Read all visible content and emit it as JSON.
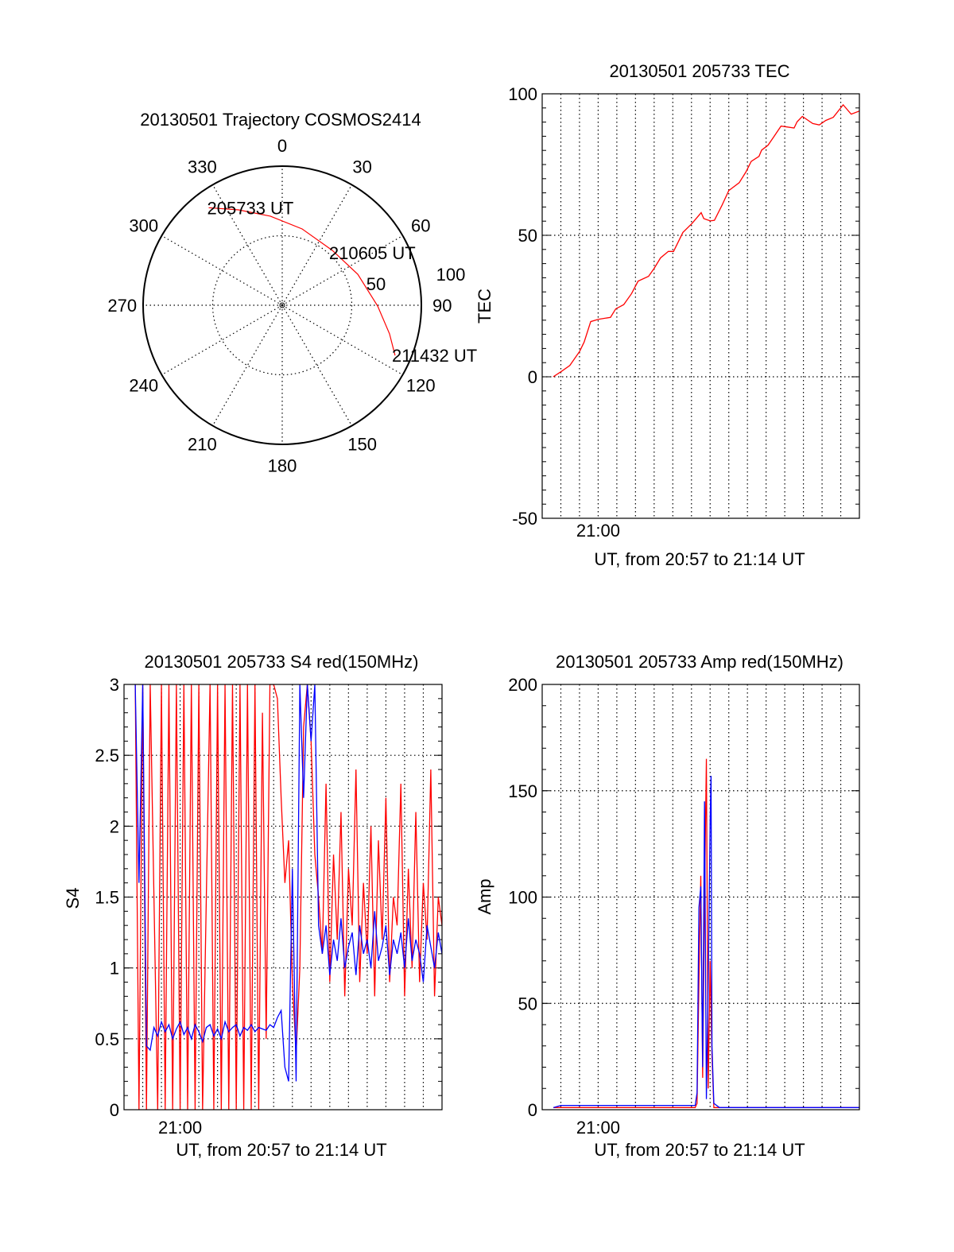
{
  "colors": {
    "red": "#ff0000",
    "blue": "#0000ff",
    "axis": "#000000"
  },
  "chart_data": [
    {
      "id": "trajectory",
      "type": "polar",
      "title": "20130501 Trajectory COSMOS2414",
      "angle_ticks": [
        0,
        30,
        60,
        90,
        120,
        150,
        180,
        210,
        240,
        270,
        300,
        330
      ],
      "radius_ticks": [
        50,
        100
      ],
      "rlim": [
        0,
        100
      ],
      "series": [
        {
          "name": "trajectory",
          "color": "red",
          "points": [
            [
              323,
              87.8
            ],
            [
              335.4,
              75.4
            ],
            [
              352.4,
              64.6
            ],
            [
              14.6,
              56.7
            ],
            [
              42.4,
              53.4
            ],
            [
              67.7,
              58.7
            ],
            [
              90.5,
              68.6
            ],
            [
              104.9,
              79.8
            ],
            [
              114,
              88.8
            ]
          ]
        }
      ],
      "annotations": [
        {
          "text": "205733 UT",
          "az": 323,
          "r": 87.8
        },
        {
          "text": "210605 UT",
          "az": 43.7,
          "r": 52
        },
        {
          "text": "211432 UT",
          "az": 114,
          "r": 88.8
        }
      ]
    },
    {
      "id": "tec",
      "type": "line",
      "title": "20130501 205733 TEC",
      "xlabel": "UT, from 20:57 to 21:14 UT",
      "ylabel": "TEC",
      "x_units": "minutes after 20:57",
      "xlim": [
        0,
        17
      ],
      "ylim": [
        -50,
        100
      ],
      "yticks": [
        -50,
        0,
        50,
        100
      ],
      "yminor": 5,
      "xticks": [
        {
          "value": 3,
          "label": "21:00"
        }
      ],
      "xgrid_step": 1,
      "grid": true,
      "series": [
        {
          "name": "TEC",
          "color": "red",
          "points": [
            [
              0.59,
              0
            ],
            [
              1.01,
              1.8
            ],
            [
              1.48,
              4
            ],
            [
              2.01,
              9
            ],
            [
              2.25,
              12.3
            ],
            [
              2.6,
              19.5
            ],
            [
              3.0,
              20.3
            ],
            [
              3.66,
              21
            ],
            [
              3.94,
              24
            ],
            [
              4.37,
              25.5
            ],
            [
              4.79,
              29.4
            ],
            [
              5.14,
              33.8
            ],
            [
              5.7,
              35.5
            ],
            [
              5.99,
              38.2
            ],
            [
              6.34,
              42
            ],
            [
              6.76,
              44.3
            ],
            [
              7.04,
              44.3
            ],
            [
              7.54,
              51
            ],
            [
              8.03,
              54.2
            ],
            [
              8.52,
              58
            ],
            [
              8.66,
              55.9
            ],
            [
              9.01,
              55.1
            ],
            [
              9.23,
              55.3
            ],
            [
              9.65,
              60.8
            ],
            [
              10.0,
              65.8
            ],
            [
              10.56,
              68.6
            ],
            [
              10.92,
              72.4
            ],
            [
              11.2,
              76.1
            ],
            [
              11.62,
              77.9
            ],
            [
              11.76,
              80.1
            ],
            [
              12.1,
              81.8
            ],
            [
              12.39,
              84.6
            ],
            [
              12.8,
              88.6
            ],
            [
              13.5,
              87.9
            ],
            [
              13.66,
              90.1
            ],
            [
              13.94,
              92
            ],
            [
              14.5,
              89.5
            ],
            [
              14.85,
              89
            ],
            [
              15.2,
              90.6
            ],
            [
              15.6,
              91.7
            ],
            [
              16.13,
              96.1
            ],
            [
              16.56,
              92.8
            ],
            [
              17.0,
              93.9
            ]
          ]
        }
      ]
    },
    {
      "id": "s4",
      "type": "line",
      "title": "20130501 205733 S4 red(150MHz)",
      "xlabel": "UT, from 20:57 to 21:14 UT",
      "ylabel": "S4",
      "x_units": "minutes after 20:57",
      "xlim": [
        0,
        17
      ],
      "ylim": [
        0,
        3
      ],
      "yticks": [
        0,
        0.5,
        1,
        1.5,
        2,
        2.5,
        3
      ],
      "yminor": 0.1,
      "xticks": [
        {
          "value": 3,
          "label": "21:00"
        }
      ],
      "xgrid_step": 1,
      "grid": true,
      "x_start": 0.6,
      "x_step": 0.2,
      "series": [
        {
          "name": "red",
          "color": "red",
          "values": [
            3,
            0,
            3,
            0,
            3,
            1.5,
            0,
            3,
            0,
            3,
            0,
            3,
            0,
            3,
            0,
            3,
            0,
            3,
            0,
            1.5,
            3,
            0,
            3,
            0,
            3,
            0,
            3,
            0,
            3,
            0,
            3,
            0,
            3,
            0,
            2.8,
            0.5,
            3,
            3,
            2.9,
            2.2,
            1.6,
            1.9,
            0.9,
            0.4,
            1.0,
            2.7,
            3,
            2.6,
            1.8,
            1.5,
            1.1,
            2.3,
            0.9,
            1.8,
            1.2,
            2.1,
            0.8,
            1.7,
            1.3,
            2.4,
            0.9,
            1.6,
            1.1,
            2.0,
            0.8,
            1.9,
            1.2,
            2.2,
            0.9,
            1.5,
            1.3,
            2.3,
            0.8,
            1.7,
            1.0,
            2.1,
            0.9,
            1.6,
            1.2,
            2.4,
            0.8,
            1.5,
            1.3
          ]
        },
        {
          "name": "blue",
          "color": "blue",
          "values": [
            3,
            1.6,
            3,
            0.45,
            0.42,
            0.58,
            0.52,
            0.62,
            0.55,
            0.6,
            0.5,
            0.57,
            0.62,
            0.53,
            0.58,
            0.5,
            0.6,
            0.55,
            0.48,
            0.58,
            0.6,
            0.52,
            0.57,
            0.5,
            0.62,
            0.55,
            0.58,
            0.6,
            0.52,
            0.58,
            0.56,
            0.6,
            0.55,
            0.58,
            0.57,
            0.56,
            0.6,
            0.58,
            0.65,
            0.7,
            0.3,
            0.2,
            1.7,
            0.2,
            3,
            2.2,
            3,
            2.6,
            3,
            1.3,
            1.1,
            1.3,
            0.95,
            1.2,
            1.05,
            1.35,
            1.0,
            1.15,
            1.25,
            0.95,
            1.3,
            1.1,
            1.2,
            1.0,
            1.4,
            1.05,
            1.15,
            1.3,
            0.95,
            1.2,
            1.1,
            1.25,
            1.0,
            1.35,
            1.05,
            1.2,
            1.1,
            0.9,
            1.3,
            1.15,
            1.0,
            1.25,
            1.1
          ]
        }
      ]
    },
    {
      "id": "amp",
      "type": "line",
      "title": "20130501 205733 Amp red(150MHz)",
      "xlabel": "UT, from 20:57 to 21:14 UT",
      "ylabel": "Amp",
      "x_units": "minutes after 20:57",
      "xlim": [
        0,
        17
      ],
      "ylim": [
        0,
        200
      ],
      "yticks": [
        0,
        50,
        100,
        150,
        200
      ],
      "yminor": 10,
      "xticks": [
        {
          "value": 3,
          "label": "21:00"
        }
      ],
      "xgrid_step": 1,
      "grid": true,
      "series": [
        {
          "name": "red",
          "color": "red",
          "points": [
            [
              0.6,
              1
            ],
            [
              8.2,
              1
            ],
            [
              8.3,
              3
            ],
            [
              8.4,
              60
            ],
            [
              8.5,
              110
            ],
            [
              8.6,
              15
            ],
            [
              8.7,
              100
            ],
            [
              8.8,
              165
            ],
            [
              8.9,
              10
            ],
            [
              9.0,
              70
            ],
            [
              9.1,
              25
            ],
            [
              9.2,
              1
            ],
            [
              12,
              1
            ],
            [
              17,
              1
            ]
          ]
        },
        {
          "name": "blue",
          "color": "blue",
          "points": [
            [
              0.6,
              1
            ],
            [
              1.0,
              2
            ],
            [
              8.2,
              2
            ],
            [
              8.3,
              8
            ],
            [
              8.4,
              95
            ],
            [
              8.5,
              105
            ],
            [
              8.6,
              20
            ],
            [
              8.7,
              145
            ],
            [
              8.8,
              5
            ],
            [
              8.9,
              60
            ],
            [
              9.0,
              135
            ],
            [
              9.05,
              157
            ],
            [
              9.1,
              30
            ],
            [
              9.2,
              3
            ],
            [
              9.5,
              1
            ],
            [
              17,
              1
            ]
          ]
        }
      ]
    }
  ]
}
